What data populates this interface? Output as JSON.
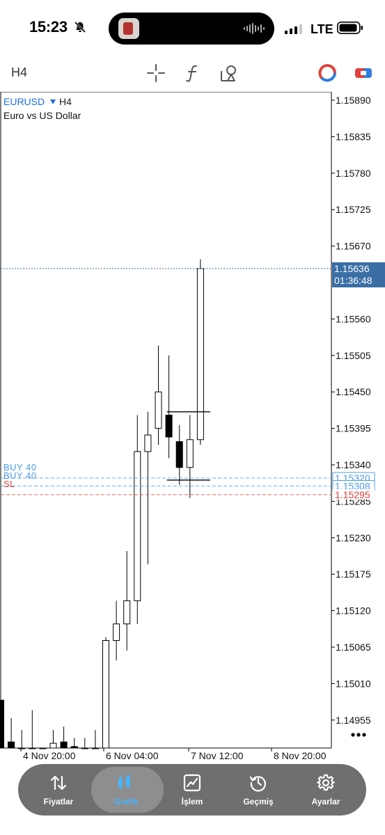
{
  "status_bar": {
    "time": "15:23",
    "network": "LTE"
  },
  "toolbar": {
    "timeframe": "H4",
    "icons": [
      "crosshair-icon",
      "indicators-icon",
      "objects-icon",
      "trade-icon",
      "one-click-icon"
    ]
  },
  "chart_header": {
    "symbol": "EURUSD",
    "timeframe": "H4",
    "description": "Euro vs US Dollar"
  },
  "order_lines": [
    {
      "label": "BUY 40",
      "price": "1.15320",
      "color": "#4a9cf0"
    },
    {
      "label": "BUY 40",
      "price": "1.15308",
      "color": "#4a9cf0"
    },
    {
      "label": "SL",
      "price": "1.15295",
      "color": "#e0413a"
    }
  ],
  "current_price": {
    "price": "1.15636",
    "countdown": "01:36:48",
    "color": "#3a6ea5"
  },
  "chart_data": {
    "type": "candlestick",
    "symbol": "EURUSD",
    "timeframe": "H4",
    "price_axis_ticks": [
      "1.15890",
      "1.15835",
      "1.15780",
      "1.15725",
      "1.15670",
      "1.15560",
      "1.15505",
      "1.15450",
      "1.15395",
      "1.15340",
      "1.15285",
      "1.15230",
      "1.15175",
      "1.15120",
      "1.15065",
      "1.15010",
      "1.14955"
    ],
    "time_axis_labels": [
      "4 Nov 20:00",
      "6 Nov 04:00",
      "7 Nov 12:00",
      "8 Nov 20:00"
    ],
    "y_range": [
      1.14915,
      1.1593
    ],
    "candles": [
      {
        "o": 1.14985,
        "h": 1.1501,
        "c": 1.14905,
        "l": 1.1489,
        "bull": false
      },
      {
        "o": 1.14922,
        "h": 1.14958,
        "c": 1.14895,
        "l": 1.1488,
        "bull": false
      },
      {
        "o": 1.149,
        "h": 1.1494,
        "c": 1.14902,
        "l": 1.1488,
        "bull": false
      },
      {
        "o": 1.14905,
        "h": 1.1497,
        "c": 1.1489,
        "l": 1.1487,
        "bull": false
      },
      {
        "o": 1.149,
        "h": 1.149,
        "c": 1.1489,
        "l": 1.1487,
        "bull": false
      },
      {
        "o": 1.14895,
        "h": 1.1494,
        "c": 1.1492,
        "l": 1.1488,
        "bull": true
      },
      {
        "o": 1.14922,
        "h": 1.14945,
        "c": 1.14908,
        "l": 1.1489,
        "bull": false
      },
      {
        "o": 1.14915,
        "h": 1.14928,
        "c": 1.149,
        "l": 1.1489,
        "bull": false
      },
      {
        "o": 1.14895,
        "h": 1.14928,
        "c": 1.149,
        "l": 1.1488,
        "bull": false
      },
      {
        "o": 1.14898,
        "h": 1.1494,
        "c": 1.1491,
        "l": 1.1488,
        "bull": true
      },
      {
        "o": 1.1491,
        "h": 1.1508,
        "c": 1.15075,
        "l": 1.149,
        "bull": true
      },
      {
        "o": 1.15075,
        "h": 1.15135,
        "c": 1.151,
        "l": 1.15045,
        "bull": true
      },
      {
        "o": 1.151,
        "h": 1.1521,
        "c": 1.15135,
        "l": 1.1506,
        "bull": true
      },
      {
        "o": 1.15135,
        "h": 1.15415,
        "c": 1.1536,
        "l": 1.151,
        "bull": true
      },
      {
        "o": 1.1536,
        "h": 1.1542,
        "c": 1.15385,
        "l": 1.1519,
        "bull": true
      },
      {
        "o": 1.15395,
        "h": 1.1552,
        "c": 1.1545,
        "l": 1.1537,
        "bull": true
      },
      {
        "o": 1.15415,
        "h": 1.15505,
        "c": 1.15382,
        "l": 1.1535,
        "bull": false
      },
      {
        "o": 1.15375,
        "h": 1.154,
        "c": 1.15336,
        "l": 1.1531,
        "bull": false
      },
      {
        "o": 1.15336,
        "h": 1.15415,
        "c": 1.15378,
        "l": 1.1529,
        "bull": true
      },
      {
        "o": 1.15378,
        "h": 1.1565,
        "c": 1.15636,
        "l": 1.1537,
        "bull": true
      }
    ],
    "range_marker": {
      "high": 1.1542,
      "low": 1.15317
    }
  },
  "tabbar": {
    "tabs": [
      {
        "label": "Fiyatlar",
        "icon": "quotes-icon",
        "active": false
      },
      {
        "label": "Grafik",
        "icon": "chart-icon",
        "active": true
      },
      {
        "label": "İşlem",
        "icon": "trade-icon",
        "active": false
      },
      {
        "label": "Geçmiş",
        "icon": "history-icon",
        "active": false
      },
      {
        "label": "Ayarlar",
        "icon": "settings-icon",
        "active": false
      }
    ]
  },
  "colors": {
    "accent": "#49b3ff",
    "symbol": "#1e6fd6",
    "buy": "#4a9cf0",
    "sl": "#e0413a",
    "price_tag": "#3a6ea5"
  }
}
